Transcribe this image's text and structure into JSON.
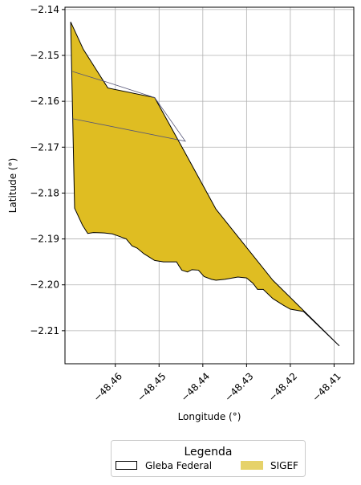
{
  "chart_data": {
    "type": "map",
    "xlabel": "Longitude (°)",
    "ylabel": "Latitude (°)",
    "xlim": [
      -48.4715,
      -48.4055
    ],
    "ylim": [
      -2.2172,
      -2.1395
    ],
    "xticks": [
      -48.46,
      -48.45,
      -48.44,
      -48.43,
      -48.42,
      -48.41
    ],
    "xtick_labels": [
      "−48.46",
      "−48.45",
      "−48.44",
      "−48.43",
      "−48.42",
      "−48.41"
    ],
    "yticks": [
      -2.14,
      -2.15,
      -2.16,
      -2.17,
      -2.18,
      -2.19,
      -2.2,
      -2.21
    ],
    "ytick_labels": [
      "−2.14",
      "−2.15",
      "−2.16",
      "−2.17",
      "−2.18",
      "−2.19",
      "−2.20",
      "−2.21"
    ],
    "grid": true,
    "legend": {
      "title": "Legenda",
      "placement": "bottom-center",
      "entries": [
        {
          "label": "Gleba Federal",
          "style": "outline",
          "color": "#000000"
        },
        {
          "label": "SIGEF",
          "style": "fill",
          "color": "#e6d26a"
        }
      ]
    },
    "polygon": {
      "name": "Gleba Federal",
      "fill": "#dfbd22",
      "stroke": "#000000",
      "coords": [
        [
          -48.4702,
          -2.1427
        ],
        [
          -48.4673,
          -2.1487
        ],
        [
          -48.4617,
          -2.1571
        ],
        [
          -48.451,
          -2.1592
        ],
        [
          -48.444,
          -2.1713
        ],
        [
          -48.437,
          -2.1835
        ],
        [
          -48.424,
          -2.199
        ],
        [
          -48.4088,
          -2.2133
        ],
        [
          -48.417,
          -2.2058
        ],
        [
          -48.42,
          -2.2053
        ],
        [
          -48.4215,
          -2.2045
        ],
        [
          -48.424,
          -2.203
        ],
        [
          -48.4262,
          -2.201
        ],
        [
          -48.4275,
          -2.201
        ],
        [
          -48.4285,
          -2.1997
        ],
        [
          -48.43,
          -2.1985
        ],
        [
          -48.432,
          -2.1983
        ],
        [
          -48.435,
          -2.1988
        ],
        [
          -48.437,
          -2.199
        ],
        [
          -48.438,
          -2.1988
        ],
        [
          -48.4397,
          -2.1982
        ],
        [
          -48.441,
          -2.1968
        ],
        [
          -48.4425,
          -2.1967
        ],
        [
          -48.4435,
          -2.1972
        ],
        [
          -48.4448,
          -2.1968
        ],
        [
          -48.4455,
          -2.1958
        ],
        [
          -48.446,
          -2.195
        ],
        [
          -48.447,
          -2.195
        ],
        [
          -48.449,
          -2.195
        ],
        [
          -48.451,
          -2.1947
        ],
        [
          -48.4535,
          -2.1932
        ],
        [
          -48.455,
          -2.192
        ],
        [
          -48.4562,
          -2.1915
        ],
        [
          -48.4575,
          -2.19
        ],
        [
          -48.4595,
          -2.1893
        ],
        [
          -48.4607,
          -2.1889
        ],
        [
          -48.4625,
          -2.1887
        ],
        [
          -48.465,
          -2.1886
        ],
        [
          -48.4663,
          -2.1888
        ],
        [
          -48.4675,
          -2.187
        ],
        [
          -48.4693,
          -2.1833
        ],
        [
          -48.4702,
          -2.1427
        ]
      ]
    },
    "inner_lines": [
      [
        [
          -48.4698,
          -2.1535
        ],
        [
          -48.462,
          -2.1558
        ],
        [
          -48.451,
          -2.1592
        ],
        [
          -48.444,
          -2.1687
        ],
        [
          -48.4697,
          -2.1638
        ]
      ]
    ]
  }
}
